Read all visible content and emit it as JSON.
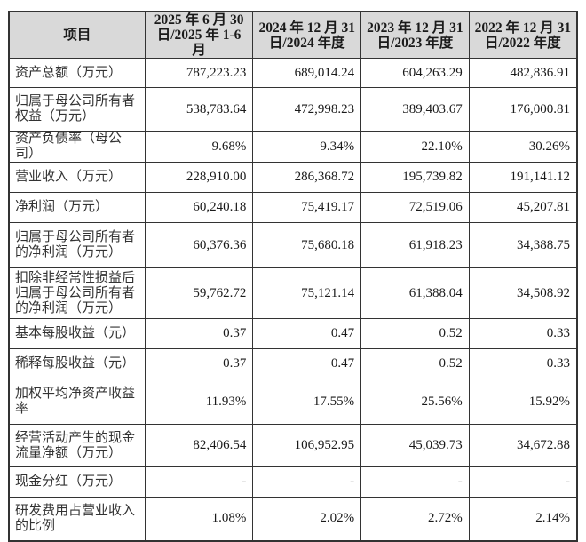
{
  "table": {
    "headers": [
      "项目",
      "2025年6月30日/2025年1-6月",
      "2024年12月31日/2024年度",
      "2023年12月31日/2023年度",
      "2022年12月31日/2022年度"
    ],
    "header_lines": [
      [
        "项目"
      ],
      [
        "2025 年 6 月 30",
        "日/2025 年 1-6 月"
      ],
      [
        "2024 年 12 月 31",
        "日/2024 年度"
      ],
      [
        "2023 年 12 月 31",
        "日/2023 年度"
      ],
      [
        "2022 年 12 月 31",
        "日/2022 年度"
      ]
    ],
    "rows": [
      {
        "label": [
          "资产总额（万元）"
        ],
        "values": [
          "787,223.23",
          "689,014.24",
          "604,263.29",
          "482,836.91"
        ]
      },
      {
        "label": [
          "归属于母公司所有者",
          "权益（万元）"
        ],
        "values": [
          "538,783.64",
          "472,998.23",
          "389,403.67",
          "176,000.81"
        ]
      },
      {
        "label": [
          "资产负债率（母公司）"
        ],
        "values": [
          "9.68%",
          "9.34%",
          "22.10%",
          "30.26%"
        ]
      },
      {
        "label": [
          "营业收入（万元）"
        ],
        "values": [
          "228,910.00",
          "286,368.72",
          "195,739.82",
          "191,141.12"
        ]
      },
      {
        "label": [
          "净利润（万元）"
        ],
        "values": [
          "60,240.18",
          "75,419.17",
          "72,519.06",
          "45,207.81"
        ]
      },
      {
        "label": [
          "归属于母公司所有者",
          "的净利润（万元）"
        ],
        "values": [
          "60,376.36",
          "75,680.18",
          "61,918.23",
          "34,388.75"
        ]
      },
      {
        "label": [
          "扣除非经常性损益后",
          "归属于母公司所有者",
          "的净利润（万元）"
        ],
        "values": [
          "59,762.72",
          "75,121.14",
          "61,388.04",
          "34,508.92"
        ]
      },
      {
        "label": [
          "基本每股收益（元）"
        ],
        "values": [
          "0.37",
          "0.47",
          "0.52",
          "0.33"
        ]
      },
      {
        "label": [
          "稀释每股收益（元）"
        ],
        "values": [
          "0.37",
          "0.47",
          "0.52",
          "0.33"
        ]
      },
      {
        "label": [
          "加权平均净资产收益",
          "率"
        ],
        "values": [
          "11.93%",
          "17.55%",
          "25.56%",
          "15.92%"
        ]
      },
      {
        "label": [
          "经营活动产生的现金",
          "流量净额（万元）"
        ],
        "values": [
          "82,406.54",
          "106,952.95",
          "45,039.73",
          "34,672.88"
        ]
      },
      {
        "label": [
          "现金分红（万元）"
        ],
        "values": [
          "-",
          "-",
          "-",
          "-"
        ]
      },
      {
        "label": [
          "研发费用占营业收入",
          "的比例"
        ],
        "values": [
          "1.08%",
          "2.02%",
          "2.72%",
          "2.14%"
        ]
      }
    ]
  }
}
